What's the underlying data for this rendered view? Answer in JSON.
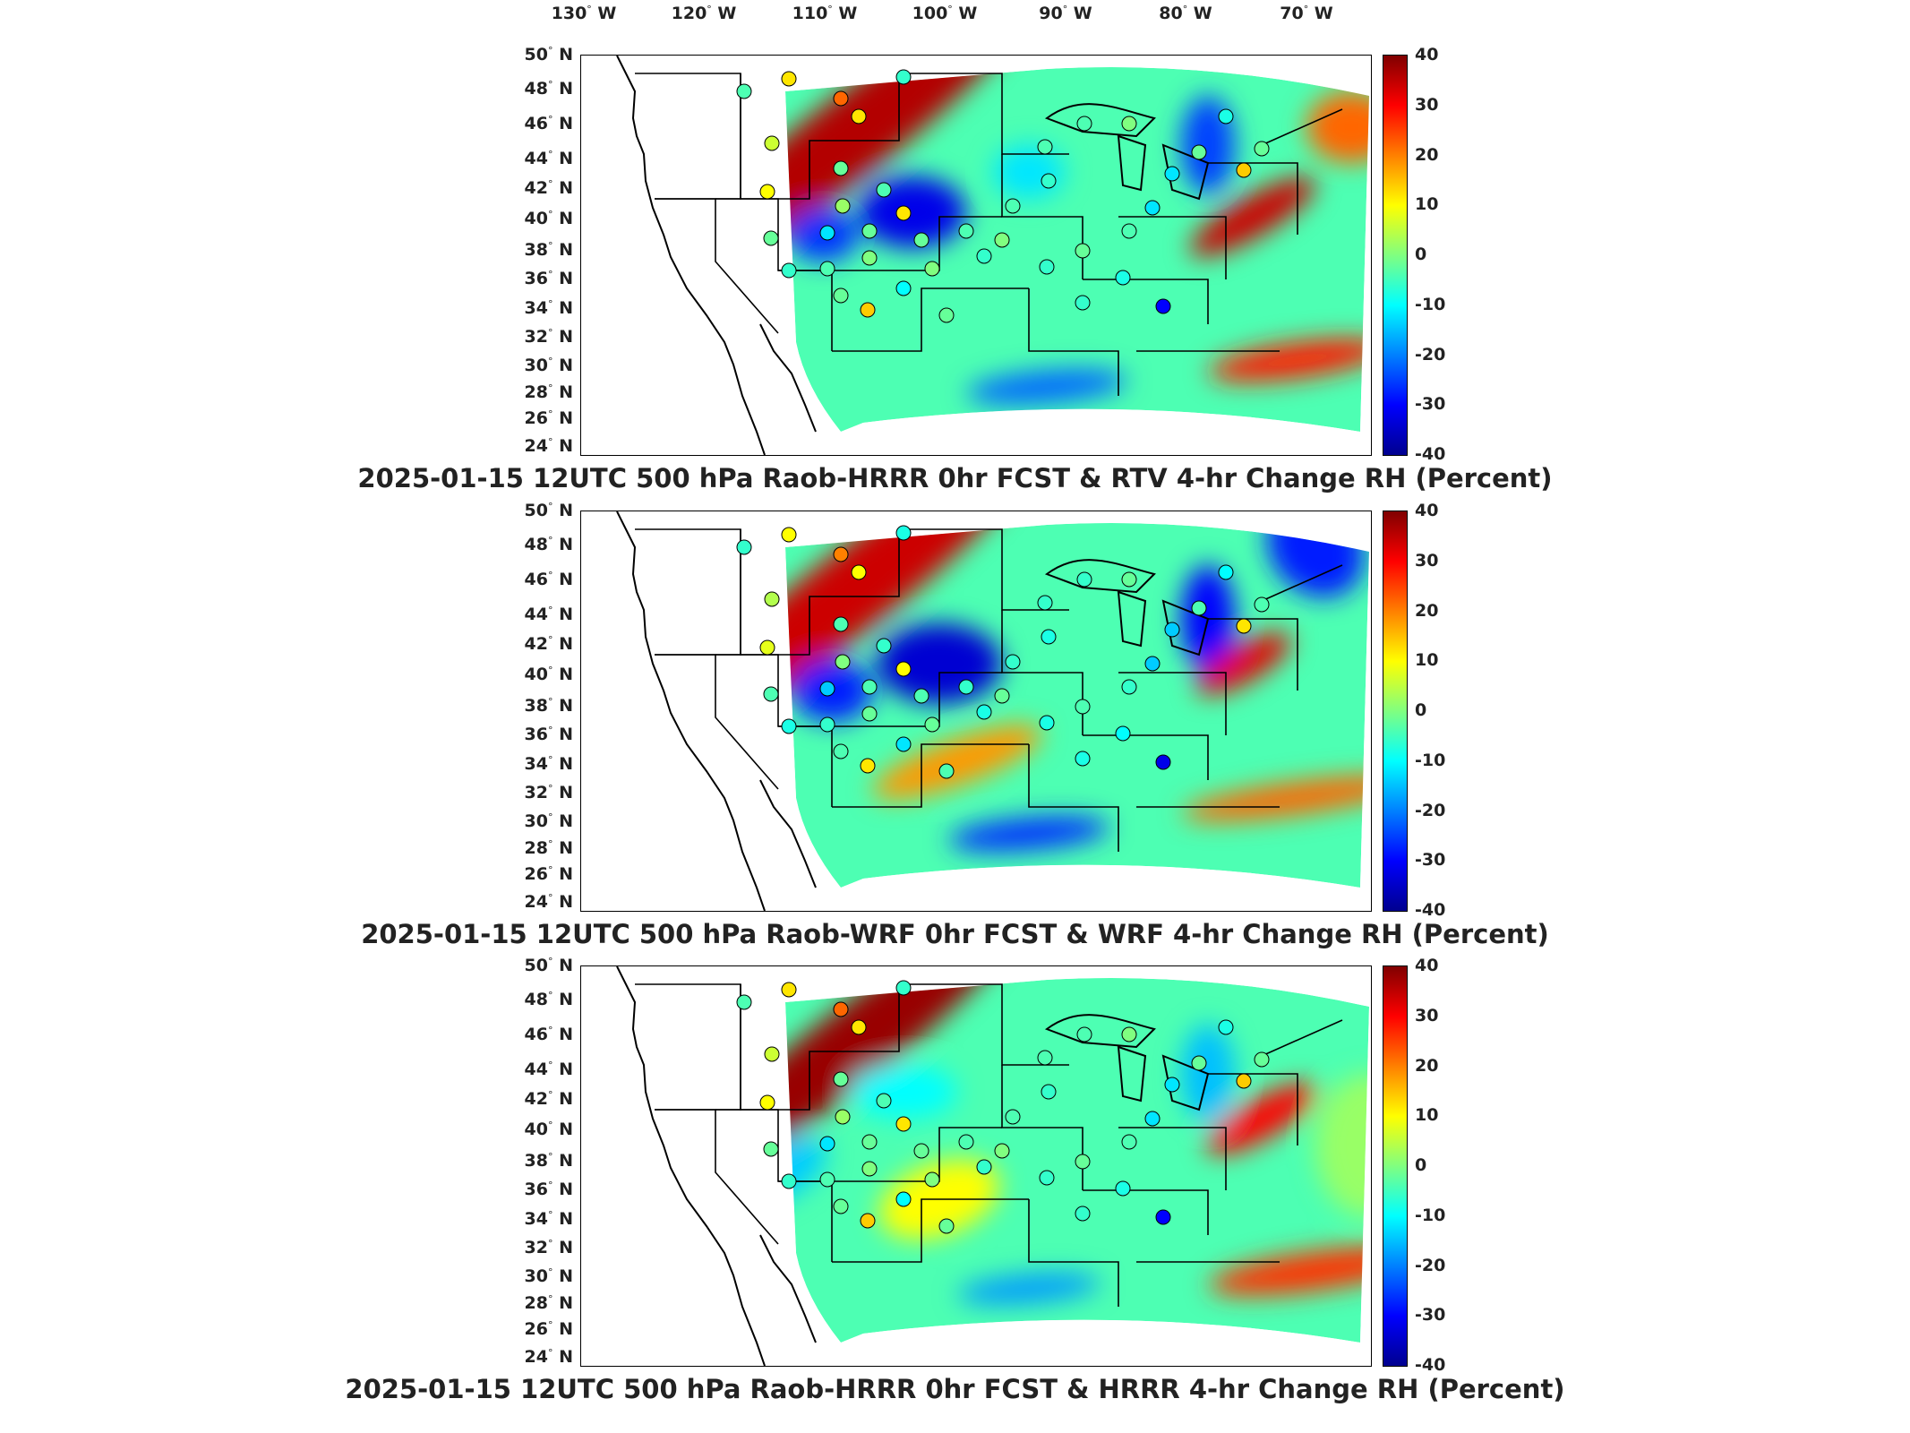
{
  "longitude_labels": [
    {
      "deg": "130",
      "hemi": "W"
    },
    {
      "deg": "120",
      "hemi": "W"
    },
    {
      "deg": "110",
      "hemi": "W"
    },
    {
      "deg": "100",
      "hemi": "W"
    },
    {
      "deg": "90",
      "hemi": "W"
    },
    {
      "deg": "80",
      "hemi": "W"
    },
    {
      "deg": "70",
      "hemi": "W"
    }
  ],
  "latitude_labels": [
    {
      "deg": "50",
      "hemi": "N"
    },
    {
      "deg": "48",
      "hemi": "N"
    },
    {
      "deg": "46",
      "hemi": "N"
    },
    {
      "deg": "44",
      "hemi": "N"
    },
    {
      "deg": "42",
      "hemi": "N"
    },
    {
      "deg": "40",
      "hemi": "N"
    },
    {
      "deg": "38",
      "hemi": "N"
    },
    {
      "deg": "36",
      "hemi": "N"
    },
    {
      "deg": "34",
      "hemi": "N"
    },
    {
      "deg": "32",
      "hemi": "N"
    },
    {
      "deg": "30",
      "hemi": "N"
    },
    {
      "deg": "28",
      "hemi": "N"
    },
    {
      "deg": "26",
      "hemi": "N"
    },
    {
      "deg": "24",
      "hemi": "N"
    }
  ],
  "colorbar": {
    "ticks": [
      "40",
      "30",
      "20",
      "10",
      "0",
      "-10",
      "-20",
      "-30",
      "-40"
    ],
    "range": [
      -40,
      40
    ],
    "colors": [
      "#00008f",
      "#0000ff",
      "#0080ff",
      "#00ffff",
      "#80ff80",
      "#ffff00",
      "#ff8000",
      "#ff0000",
      "#800000"
    ]
  },
  "panels": [
    {
      "title": "2025-01-15 12UTC 500 hPa Raob-HRRR 0hr FCST & RTV 4-hr Change RH (Percent)"
    },
    {
      "title": "2025-01-15 12UTC 500 hPa Raob-WRF 0hr FCST & WRF 4-hr Change RH (Percent)"
    },
    {
      "title": "2025-01-15 12UTC 500 hPa Raob-HRRR 0hr FCST & HRRR 4-hr Change RH (Percent)"
    }
  ],
  "map_extent": {
    "lon_range": [
      -130,
      -65
    ],
    "lat_range": [
      24,
      50
    ]
  }
}
